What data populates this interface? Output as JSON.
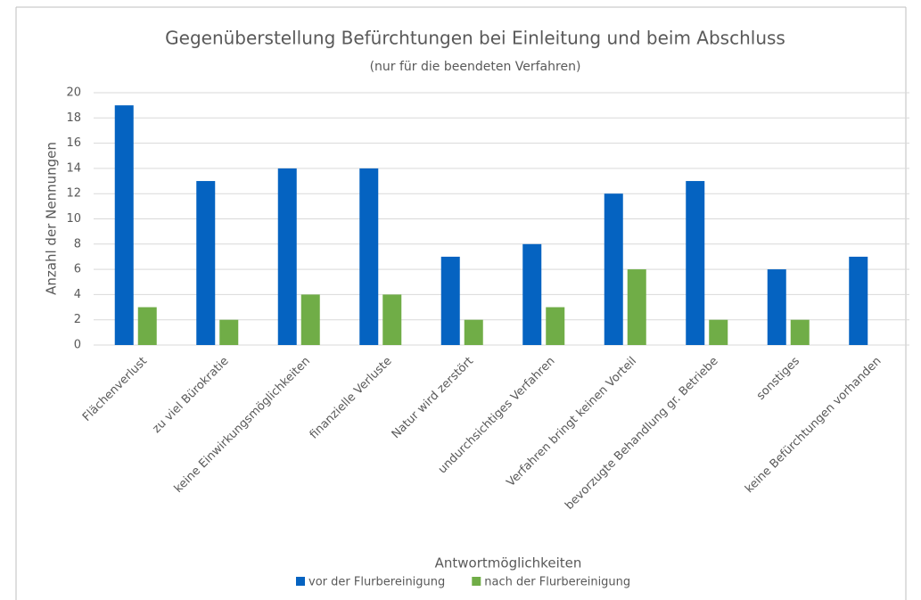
{
  "chart_data": {
    "type": "bar",
    "title": "Gegenüberstellung Befürchtungen bei Einleitung und beim Abschluss",
    "subtitle": "(nur für die beendeten Verfahren)",
    "x_label": "Antwortmöglichkeiten",
    "y_label": "Anzahl der Nennungen",
    "categories": [
      "Flächenverlust",
      "zu viel Bürokratie",
      "keine Einwirkungsmöglichkeiten",
      "finanzielle Verluste",
      "Natur wird zerstört",
      "undurchsichtiges Verfahren",
      "Verfahren bringt keinen Vorteil",
      "bevorzugte Behandlung gr. Betriebe",
      "sonstiges",
      "keine Befürchtungen vorhanden"
    ],
    "series": [
      {
        "name": "vor der Flurbereinigung",
        "color": "#0563c1",
        "values": [
          19,
          13,
          14,
          14,
          7,
          8,
          12,
          13,
          6,
          7
        ]
      },
      {
        "name": "nach der Flurbereinigung",
        "color": "#70ad47",
        "values": [
          3,
          2,
          4,
          4,
          2,
          3,
          6,
          2,
          2,
          0
        ]
      }
    ],
    "ylim": [
      0,
      20
    ],
    "yticks": [
      0,
      2,
      4,
      6,
      8,
      10,
      12,
      14,
      16,
      18,
      20
    ],
    "grid": true,
    "legend": "bottom"
  }
}
